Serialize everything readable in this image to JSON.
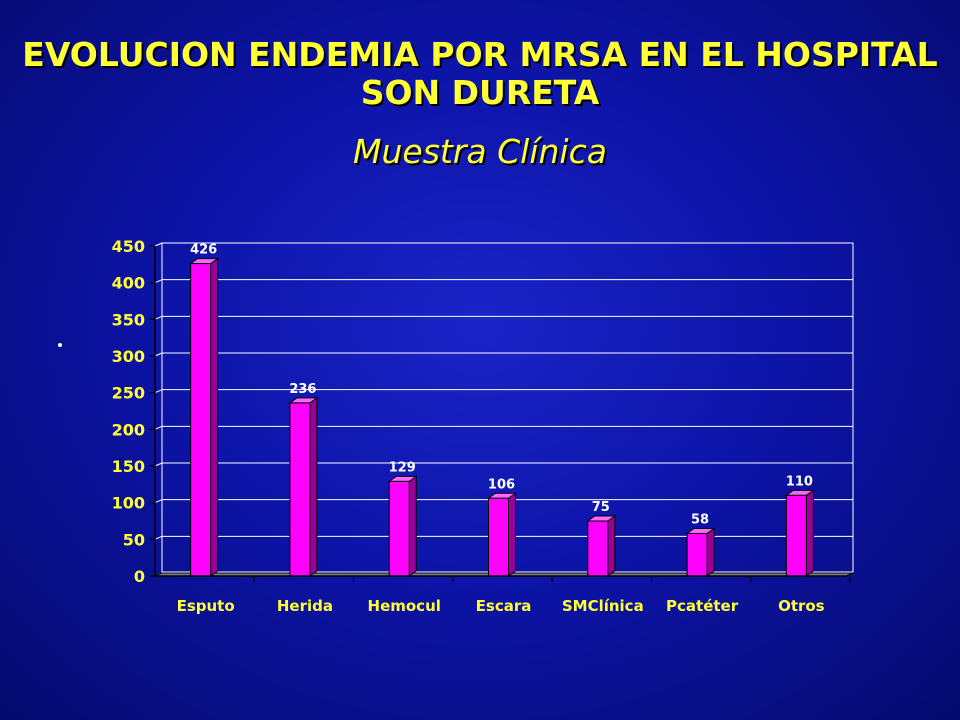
{
  "slide": {
    "title": "EVOLUCION ENDEMIA POR MRSA EN EL HOSPITAL SON DURETA",
    "subtitle": "Muestra Clínica"
  },
  "chart_data": {
    "type": "bar",
    "categories": [
      "Esputo",
      "Herida",
      "Hemocul",
      "Escara",
      "SMClínica",
      "Pcatéter",
      "Otros"
    ],
    "values": [
      426,
      236,
      129,
      106,
      75,
      58,
      110
    ],
    "title": "",
    "xlabel": "",
    "ylabel": "",
    "ylim": [
      0,
      450
    ],
    "yticks": [
      0,
      50,
      100,
      150,
      200,
      250,
      300,
      350,
      400,
      450
    ],
    "grid": true,
    "legend": "none",
    "bar_color": "#ff00ff",
    "label_color": "#ffff33"
  }
}
